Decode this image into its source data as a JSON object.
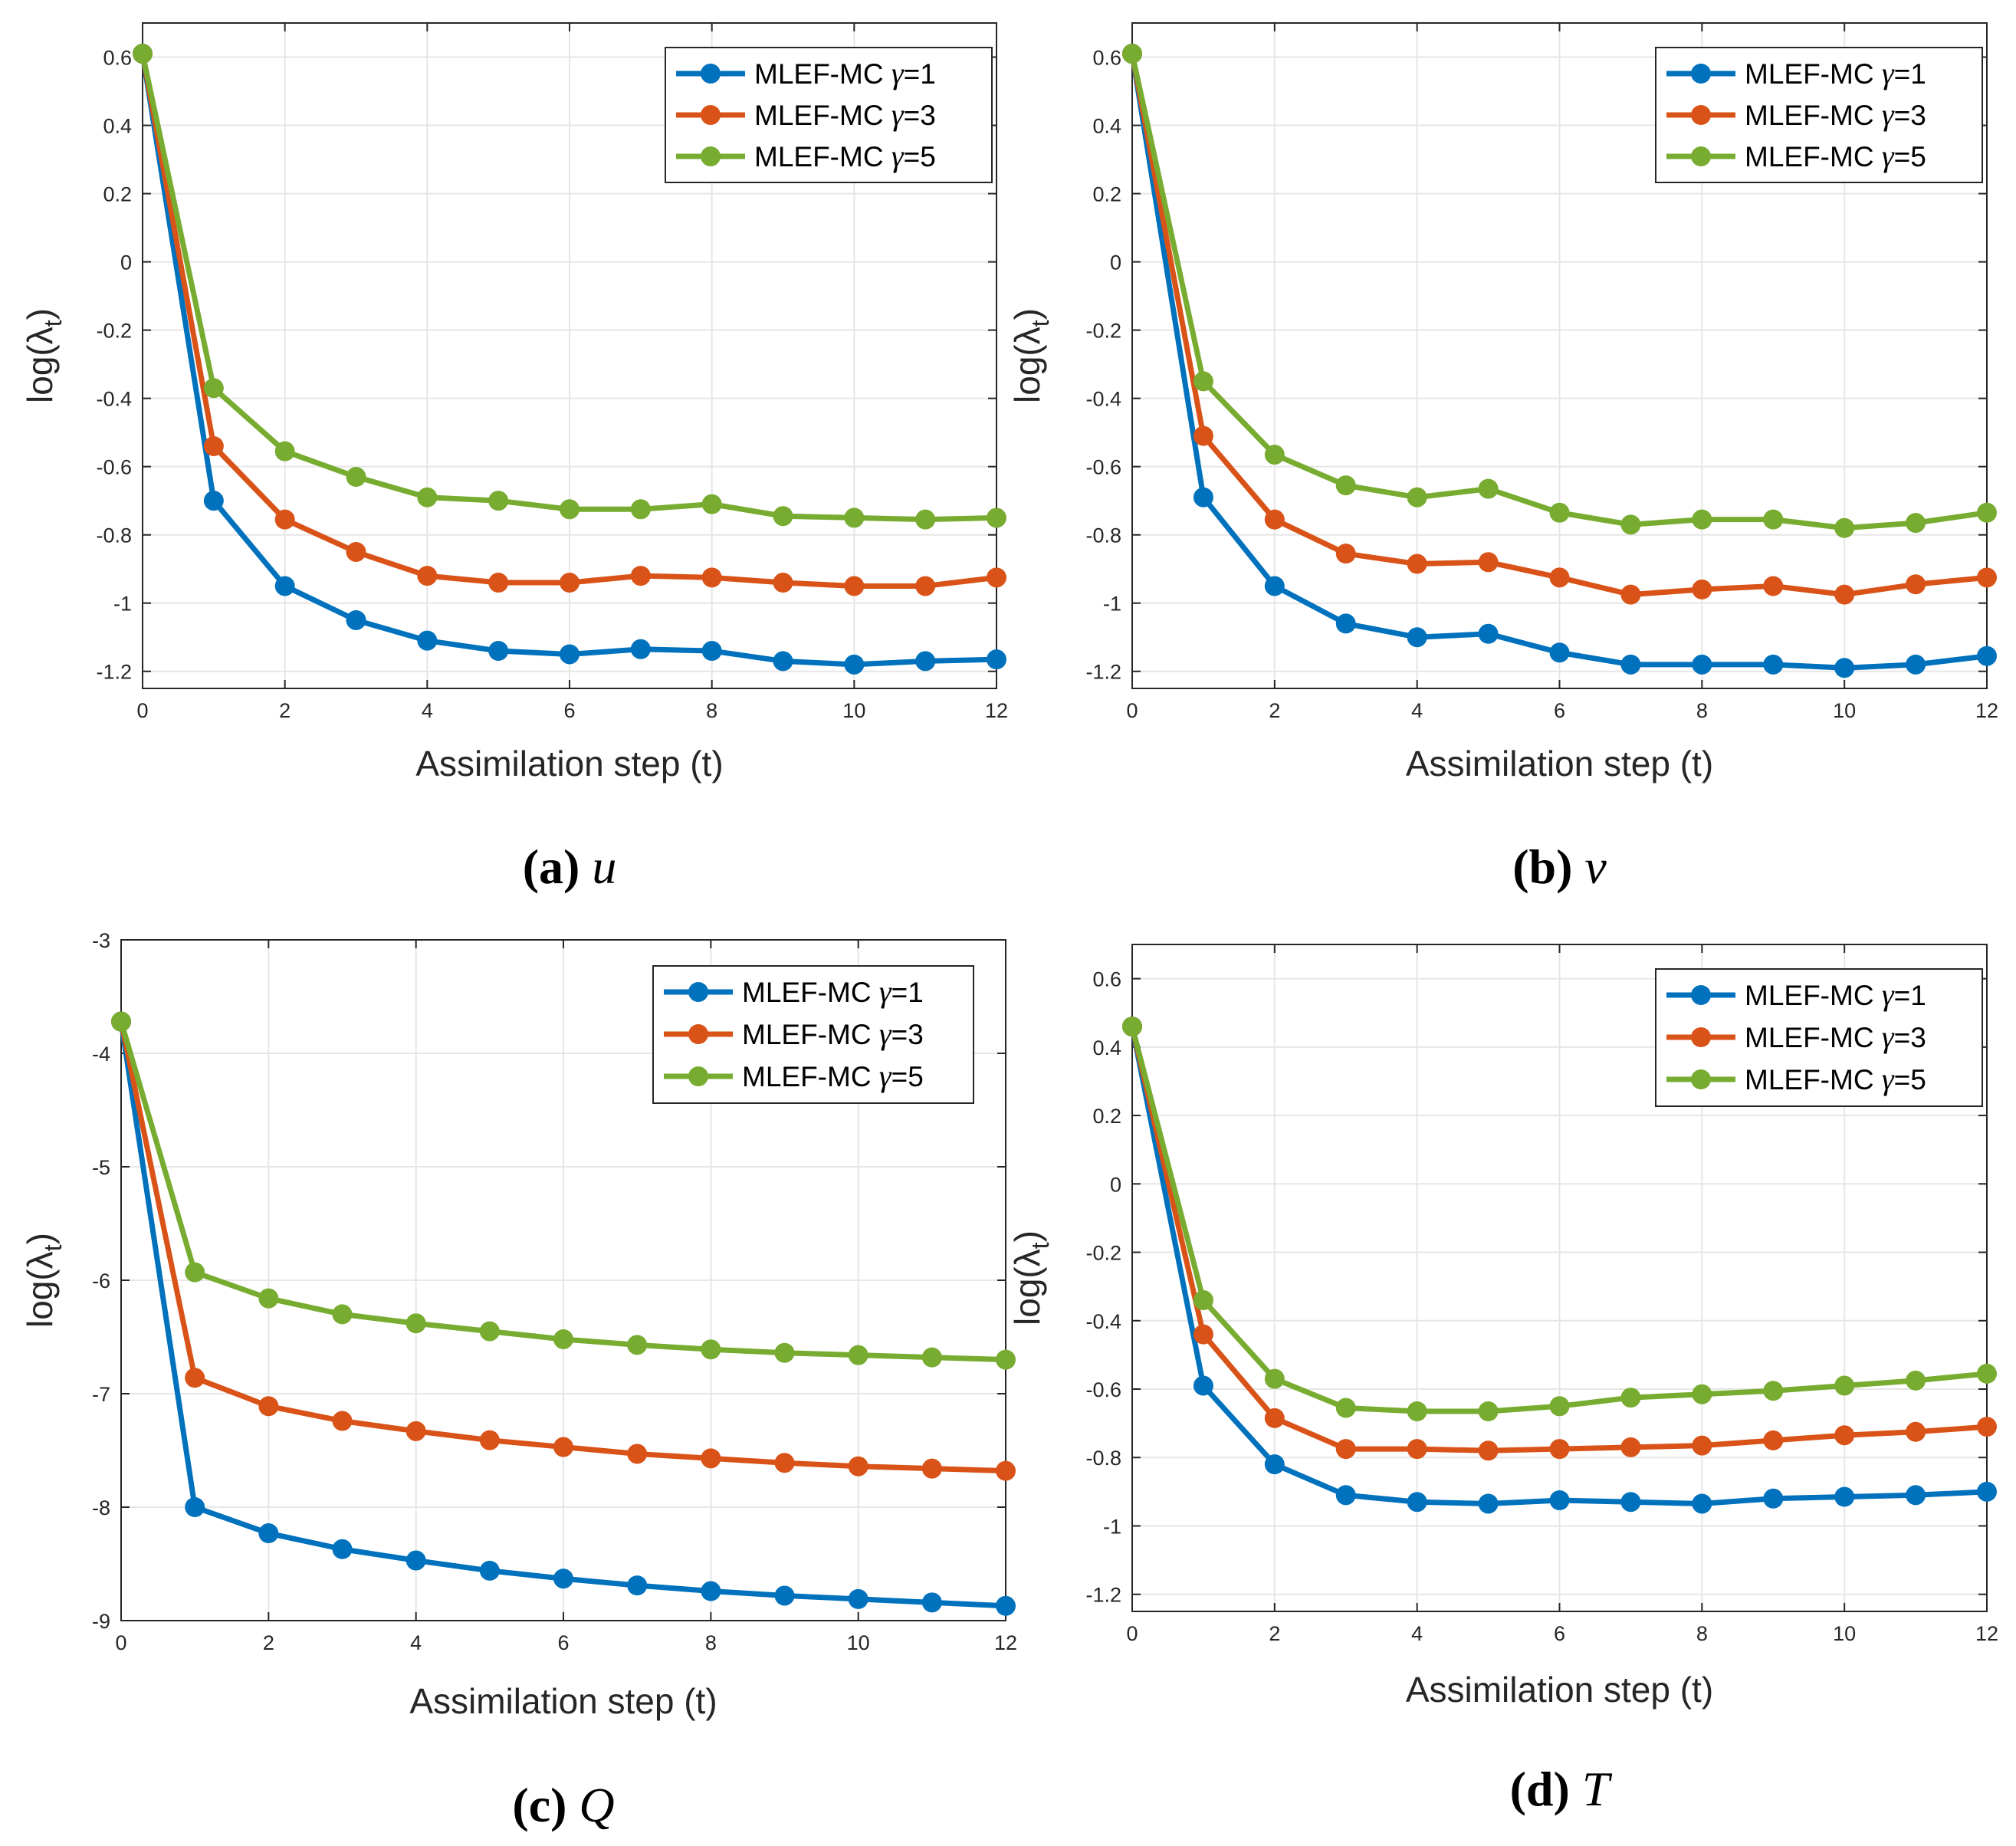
{
  "colors": {
    "gamma1": "#0072BD",
    "gamma3": "#D95319",
    "gamma5": "#77AC30",
    "grid": "#e6e6e6",
    "axis": "#262626"
  },
  "chart_data": [
    {
      "type": "line",
      "caption_letter": "(a)",
      "caption_var": "u",
      "xlabel": "Assimilation step (t)",
      "ylabel": "log(λt)",
      "ylabel_main": "log(λ",
      "ylabel_sub": "t",
      "ylabel_close": ")",
      "xlim": [
        0,
        12
      ],
      "ylim": [
        -1.25,
        0.7
      ],
      "xticks": [
        0,
        2,
        4,
        6,
        8,
        10,
        12
      ],
      "yticks": [
        -1.2,
        -1,
        -0.8,
        -0.6,
        -0.4,
        -0.2,
        0,
        0.2,
        0.4,
        0.6
      ],
      "yticklabels": [
        "-1.2",
        "-1",
        "-0.8",
        "-0.6",
        "-0.4",
        "-0.2",
        "0",
        "0.2",
        "0.4",
        "0.6"
      ],
      "x": [
        0,
        1,
        2,
        3,
        4,
        5,
        6,
        7,
        8,
        9,
        10,
        11,
        12
      ],
      "series": [
        {
          "name": "MLEF-MC γ=1",
          "label_main": "MLEF-MC ",
          "label_gamma": "γ",
          "label_val": "=1",
          "color_key": "gamma1",
          "values": [
            0.61,
            -0.7,
            -0.95,
            -1.05,
            -1.11,
            -1.14,
            -1.15,
            -1.135,
            -1.14,
            -1.17,
            -1.18,
            -1.17,
            -1.165
          ]
        },
        {
          "name": "MLEF-MC γ=3",
          "label_main": "MLEF-MC ",
          "label_gamma": "γ",
          "label_val": "=3",
          "color_key": "gamma3",
          "values": [
            0.61,
            -0.54,
            -0.755,
            -0.85,
            -0.92,
            -0.94,
            -0.94,
            -0.92,
            -0.925,
            -0.94,
            -0.95,
            -0.95,
            -0.925
          ]
        },
        {
          "name": "MLEF-MC γ=5",
          "label_main": "MLEF-MC ",
          "label_gamma": "γ",
          "label_val": "=5",
          "color_key": "gamma5",
          "values": [
            0.61,
            -0.37,
            -0.555,
            -0.63,
            -0.69,
            -0.7,
            -0.725,
            -0.725,
            -0.71,
            -0.745,
            -0.75,
            -0.755,
            -0.75
          ]
        }
      ]
    },
    {
      "type": "line",
      "caption_letter": "(b)",
      "caption_var": "v",
      "xlabel": "Assimilation step (t)",
      "ylabel": "log(λt)",
      "ylabel_main": "log(λ",
      "ylabel_sub": "t",
      "ylabel_close": ")",
      "xlim": [
        0,
        12
      ],
      "ylim": [
        -1.25,
        0.7
      ],
      "xticks": [
        0,
        2,
        4,
        6,
        8,
        10,
        12
      ],
      "yticks": [
        -1.2,
        -1,
        -0.8,
        -0.6,
        -0.4,
        -0.2,
        0,
        0.2,
        0.4,
        0.6
      ],
      "yticklabels": [
        "-1.2",
        "-1",
        "-0.8",
        "-0.6",
        "-0.4",
        "-0.2",
        "0",
        "0.2",
        "0.4",
        "0.6"
      ],
      "x": [
        0,
        1,
        2,
        3,
        4,
        5,
        6,
        7,
        8,
        9,
        10,
        11,
        12
      ],
      "series": [
        {
          "name": "MLEF-MC γ=1",
          "label_main": "MLEF-MC ",
          "label_gamma": "γ",
          "label_val": "=1",
          "color_key": "gamma1",
          "values": [
            0.61,
            -0.69,
            -0.95,
            -1.06,
            -1.1,
            -1.09,
            -1.145,
            -1.18,
            -1.18,
            -1.18,
            -1.19,
            -1.18,
            -1.155
          ]
        },
        {
          "name": "MLEF-MC γ=3",
          "label_main": "MLEF-MC ",
          "label_gamma": "γ",
          "label_val": "=3",
          "color_key": "gamma3",
          "values": [
            0.61,
            -0.51,
            -0.755,
            -0.855,
            -0.885,
            -0.88,
            -0.925,
            -0.975,
            -0.96,
            -0.95,
            -0.975,
            -0.945,
            -0.925
          ]
        },
        {
          "name": "MLEF-MC γ=5",
          "label_main": "MLEF-MC ",
          "label_gamma": "γ",
          "label_val": "=5",
          "color_key": "gamma5",
          "values": [
            0.61,
            -0.35,
            -0.565,
            -0.655,
            -0.69,
            -0.665,
            -0.735,
            -0.77,
            -0.755,
            -0.755,
            -0.78,
            -0.765,
            -0.735
          ]
        }
      ]
    },
    {
      "type": "line",
      "caption_letter": "(c)",
      "caption_var": "Q",
      "xlabel": "Assimilation step (t)",
      "ylabel": "log(λt)",
      "ylabel_main": "log(λ",
      "ylabel_sub": "t",
      "ylabel_close": ")",
      "xlim": [
        0,
        12
      ],
      "ylim": [
        -9,
        -3
      ],
      "xticks": [
        0,
        2,
        4,
        6,
        8,
        10,
        12
      ],
      "yticks": [
        -9,
        -8,
        -7,
        -6,
        -5,
        -4,
        -3
      ],
      "yticklabels": [
        "-9",
        "-8",
        "-7",
        "-6",
        "-5",
        "-4",
        "-3"
      ],
      "x": [
        0,
        1,
        2,
        3,
        4,
        5,
        6,
        7,
        8,
        9,
        10,
        11,
        12
      ],
      "series": [
        {
          "name": "MLEF-MC γ=1",
          "label_main": "MLEF-MC ",
          "label_gamma": "γ",
          "label_val": "=1",
          "color_key": "gamma1",
          "values": [
            -3.72,
            -8.0,
            -8.23,
            -8.37,
            -8.47,
            -8.56,
            -8.63,
            -8.69,
            -8.74,
            -8.78,
            -8.81,
            -8.84,
            -8.87
          ]
        },
        {
          "name": "MLEF-MC γ=3",
          "label_main": "MLEF-MC ",
          "label_gamma": "γ",
          "label_val": "=3",
          "color_key": "gamma3",
          "values": [
            -3.72,
            -6.86,
            -7.11,
            -7.24,
            -7.33,
            -7.41,
            -7.47,
            -7.53,
            -7.57,
            -7.61,
            -7.64,
            -7.66,
            -7.68
          ]
        },
        {
          "name": "MLEF-MC γ=5",
          "label_main": "MLEF-MC ",
          "label_gamma": "γ",
          "label_val": "=5",
          "color_key": "gamma5",
          "values": [
            -3.72,
            -5.93,
            -6.16,
            -6.3,
            -6.38,
            -6.45,
            -6.52,
            -6.57,
            -6.61,
            -6.64,
            -6.66,
            -6.68,
            -6.7
          ]
        }
      ]
    },
    {
      "type": "line",
      "caption_letter": "(d)",
      "caption_var": "T",
      "xlabel": "Assimilation step (t)",
      "ylabel": "log(λt)",
      "ylabel_main": "log(λ",
      "ylabel_sub": "t",
      "ylabel_close": ")",
      "xlim": [
        0,
        12
      ],
      "ylim": [
        -1.25,
        0.7
      ],
      "xticks": [
        0,
        2,
        4,
        6,
        8,
        10,
        12
      ],
      "yticks": [
        -1.2,
        -1,
        -0.8,
        -0.6,
        -0.4,
        -0.2,
        0,
        0.2,
        0.4,
        0.6
      ],
      "yticklabels": [
        "-1.2",
        "-1",
        "-0.8",
        "-0.6",
        "-0.4",
        "-0.2",
        "0",
        "0.2",
        "0.4",
        "0.6"
      ],
      "x": [
        0,
        1,
        2,
        3,
        4,
        5,
        6,
        7,
        8,
        9,
        10,
        11,
        12
      ],
      "series": [
        {
          "name": "MLEF-MC γ=1",
          "label_main": "MLEF-MC ",
          "label_gamma": "γ",
          "label_val": "=1",
          "color_key": "gamma1",
          "values": [
            0.46,
            -0.59,
            -0.82,
            -0.91,
            -0.93,
            -0.935,
            -0.925,
            -0.93,
            -0.935,
            -0.92,
            -0.915,
            -0.91,
            -0.9
          ]
        },
        {
          "name": "MLEF-MC γ=3",
          "label_main": "MLEF-MC ",
          "label_gamma": "γ",
          "label_val": "=3",
          "color_key": "gamma3",
          "values": [
            0.46,
            -0.44,
            -0.685,
            -0.775,
            -0.775,
            -0.78,
            -0.775,
            -0.77,
            -0.765,
            -0.75,
            -0.735,
            -0.725,
            -0.71
          ]
        },
        {
          "name": "MLEF-MC γ=5",
          "label_main": "MLEF-MC ",
          "label_gamma": "γ",
          "label_val": "=5",
          "color_key": "gamma5",
          "values": [
            0.46,
            -0.34,
            -0.57,
            -0.655,
            -0.665,
            -0.665,
            -0.65,
            -0.625,
            -0.615,
            -0.605,
            -0.59,
            -0.575,
            -0.555
          ]
        }
      ]
    }
  ]
}
